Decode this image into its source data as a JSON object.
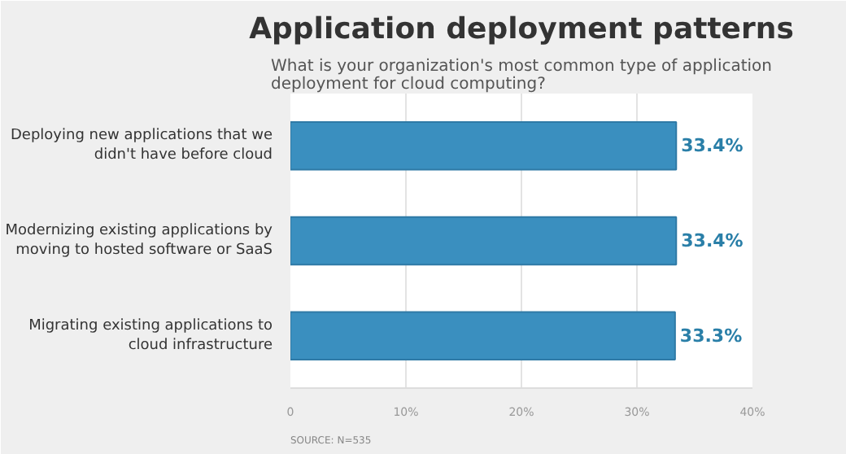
{
  "chart_data": {
    "type": "bar",
    "orientation": "horizontal",
    "title": "Application deployment patterns",
    "subtitle": "What is your organization's most common type of application deployment for cloud computing?",
    "categories": [
      "Deploying new applications that we didn't have before cloud",
      "Modernizing existing applications by moving to hosted software or SaaS",
      "Migrating existing applications to cloud infrastructure"
    ],
    "values": [
      33.4,
      33.4,
      33.3
    ],
    "color": "#3a8fbf",
    "value_labels": [
      "33.4%",
      "33.4%",
      "33.3%"
    ],
    "xlim": [
      0,
      40
    ],
    "xticks": [
      0,
      {
        "value": 10,
        "label": "10%"
      },
      {
        "value": 20,
        "label": "20%"
      },
      {
        "value": 30,
        "label": "30%"
      },
      {
        "value": 40,
        "label": "40%"
      }
    ],
    "grid": "x",
    "annotations": [
      "SOURCE: N=535"
    ]
  }
}
